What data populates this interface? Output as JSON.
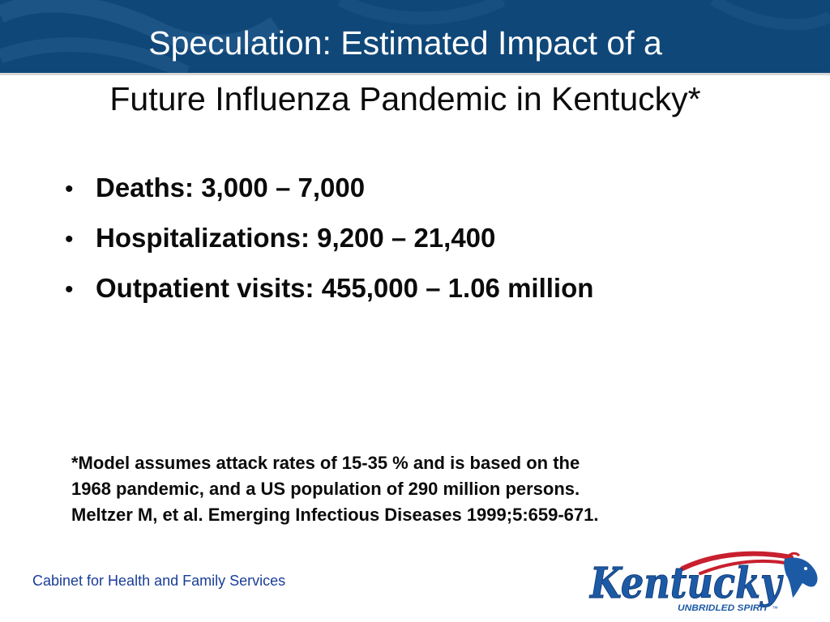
{
  "slide": {
    "title_line1": "Speculation: Estimated Impact  of a",
    "title_line2": "Future Influenza Pandemic in Kentucky*",
    "bullets": [
      {
        "label": "Deaths:  3,000 – 7,000"
      },
      {
        "label": "Hospitalizations: 9,200 – 21,400"
      },
      {
        "label": "Outpatient visits: 455,000 – 1.06 million"
      }
    ],
    "footnote": [
      "*Model assumes attack rates of 15-35 % and is based on the",
      "1968 pandemic, and a US population of 290 million persons.",
      "Meltzer M, et al.  Emerging Infectious Diseases 1999;5:659-671."
    ]
  },
  "footer": {
    "organization": "Cabinet for Health and Family Services",
    "logo": {
      "wordmark": "Kentucky",
      "tagline": "UNBRIDLED SPIRIT",
      "trademark": "™",
      "icon": "horse-head-logo-icon"
    }
  },
  "colors": {
    "header_band": "#0f4778",
    "title_text": "#ffffff",
    "footer_text": "#1a3d99",
    "logo_blue": "#1d5aa6",
    "logo_red": "#c8202e"
  }
}
